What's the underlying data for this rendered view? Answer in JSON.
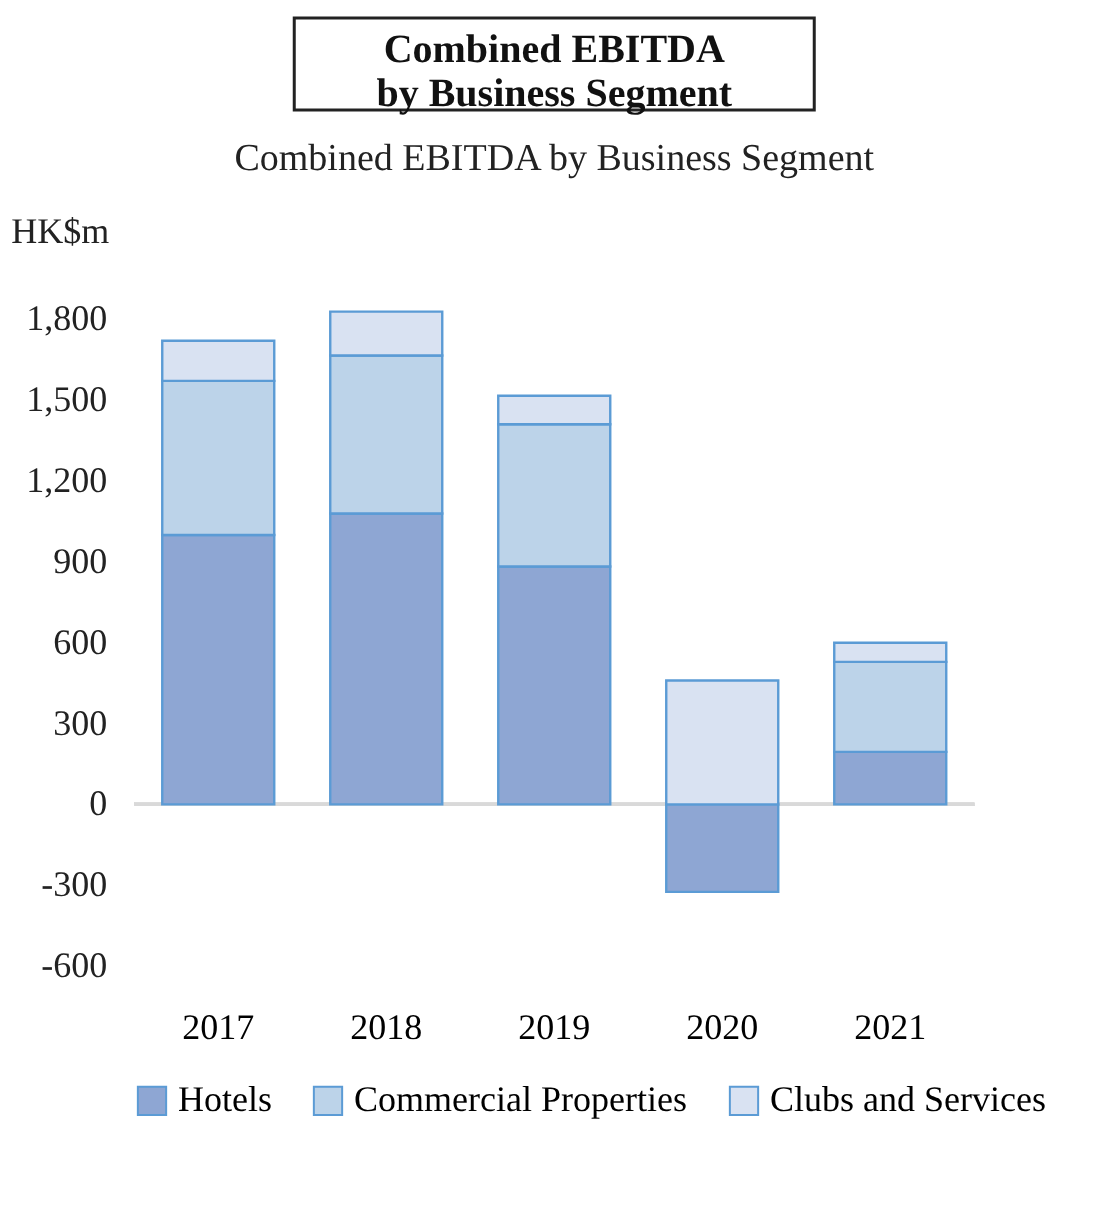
{
  "chart_data": {
    "type": "bar",
    "stacked": true,
    "title": "Combined EBITDA by Business Segment",
    "subtitle": "Combined EBITDA by Business Segment",
    "ylabel": "HK$m",
    "categories": [
      "2017",
      "2018",
      "2019",
      "2020",
      "2021"
    ],
    "series": [
      {
        "name": "Hotels",
        "color": "#8ea6d3",
        "values": [
          1000,
          1080,
          883,
          -325,
          195
        ]
      },
      {
        "name": "Commercial Properties",
        "color": "#bcd3e9",
        "values": [
          572,
          586,
          528,
          null,
          334
        ]
      },
      {
        "name": "Clubs and Services",
        "color": "#d9e2f2",
        "values": [
          149,
          163,
          106,
          460,
          71
        ]
      }
    ],
    "ylim": [
      -600,
      1850
    ],
    "yticks": [
      -600,
      -300,
      0,
      300,
      600,
      900,
      {
        "value": 1200,
        "label": "1,200"
      },
      {
        "value": 1500,
        "label": "1,500"
      },
      {
        "value": 1800,
        "label": "1,800"
      }
    ],
    "ref_lines": [
      {
        "axis": "y",
        "value": 0,
        "color": "#d9d9d9"
      }
    ],
    "grid": false,
    "legend": "bottom"
  }
}
